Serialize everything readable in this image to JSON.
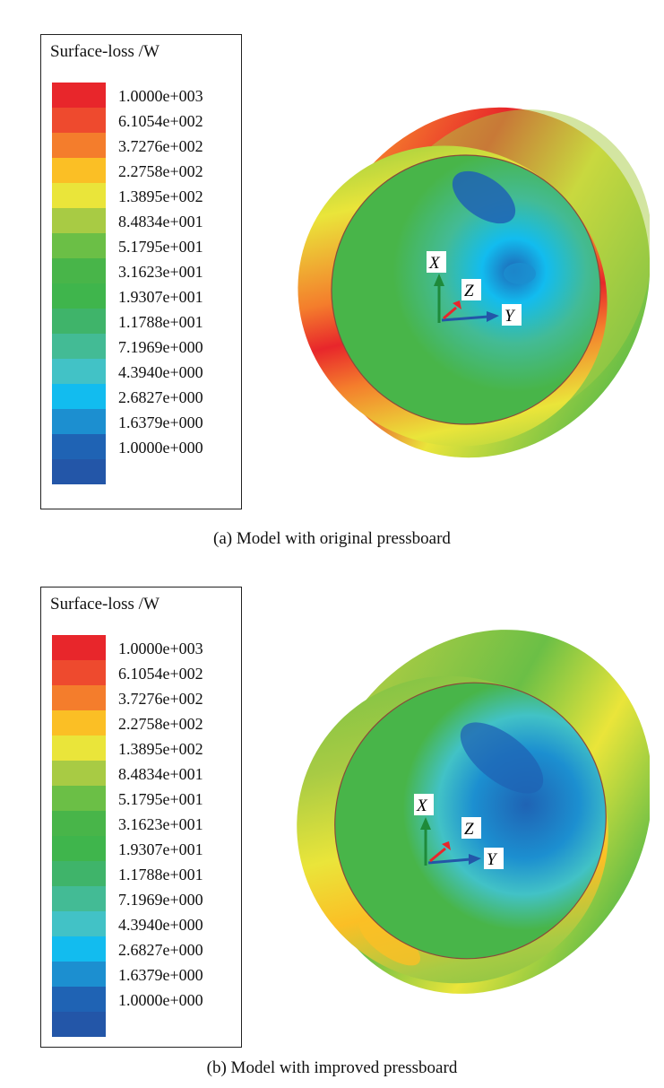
{
  "panels": [
    {
      "legend_title": "Surface-loss /W",
      "ticks": [
        "1.0000e+003",
        "6.1054e+002",
        "3.7276e+002",
        "2.2758e+002",
        "1.3895e+002",
        "8.4834e+001",
        "5.1795e+001",
        "3.1623e+001",
        "1.9307e+001",
        "1.1788e+001",
        "7.1969e+000",
        "4.3940e+000",
        "2.6827e+000",
        "1.6379e+000",
        "1.0000e+000"
      ],
      "axes": {
        "x": "X",
        "y": "Y",
        "z": "Z"
      },
      "caption": "(a) Model with original pressboard"
    },
    {
      "legend_title": "Surface-loss /W",
      "ticks": [
        "1.0000e+003",
        "6.1054e+002",
        "3.7276e+002",
        "2.2758e+002",
        "1.3895e+002",
        "8.4834e+001",
        "5.1795e+001",
        "3.1623e+001",
        "1.9307e+001",
        "1.1788e+001",
        "7.1969e+000",
        "4.3940e+000",
        "2.6827e+000",
        "1.6379e+000",
        "1.0000e+000"
      ],
      "axes": {
        "x": "X",
        "y": "Y",
        "z": "Z"
      },
      "caption": "(b) Model with improved pressboard"
    }
  ],
  "colors": {
    "scale": [
      "#e8262b",
      "#ee4a2e",
      "#f47d2c",
      "#fbbf25",
      "#eae53a",
      "#a8cb44",
      "#6bbf46",
      "#48b549",
      "#3fb54c",
      "#3fb46a",
      "#43bb95",
      "#42c2c6",
      "#12bcef",
      "#1c8fd0",
      "#1f63b4",
      "#2356a8"
    ]
  }
}
